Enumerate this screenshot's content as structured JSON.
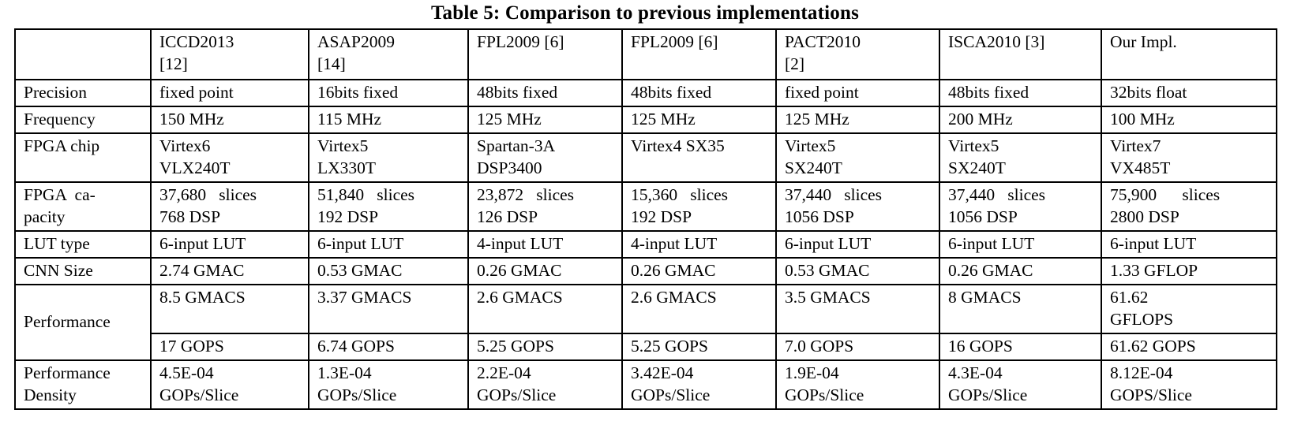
{
  "title": "Table 5: Comparison to previous implementations",
  "table": {
    "columns": [
      "",
      "ICCD2013\n[12]",
      "ASAP2009\n[14]",
      "FPL2009 [6]",
      "FPL2009 [6]",
      "PACT2010\n[2]",
      "ISCA2010 [3]",
      "Our Impl."
    ],
    "rows": [
      {
        "label": "Precision",
        "cells": [
          "fixed point",
          "16bits fixed",
          "48bits fixed",
          "48bits fixed",
          "fixed point",
          "48bits fixed",
          "32bits float"
        ]
      },
      {
        "label": "Frequency",
        "cells": [
          "150 MHz",
          "115 MHz",
          "125 MHz",
          "125 MHz",
          "125 MHz",
          "200 MHz",
          "100 MHz"
        ]
      },
      {
        "label": "FPGA chip",
        "tall": true,
        "cells": [
          "Virtex6\nVLX240T",
          "Virtex5\nLX330T",
          "Spartan-3A\nDSP3400",
          "Virtex4 SX35",
          "Virtex5\nSX240T",
          "Virtex5\nSX240T",
          "Virtex7\nVX485T"
        ]
      },
      {
        "label": "FPGA  ca-\npacity",
        "tall": true,
        "cells": [
          "37,680   slices\n768 DSP",
          "51,840   slices\n192 DSP",
          "23,872   slices\n126 DSP",
          "15,360   slices\n192 DSP",
          "37,440   slices\n1056 DSP",
          "37,440   slices\n1056 DSP",
          "75,900      slices\n2800 DSP"
        ]
      },
      {
        "label": "LUT type",
        "cells": [
          "6-input LUT",
          "6-input LUT",
          "4-input LUT",
          "4-input LUT",
          "6-input LUT",
          "6-input LUT",
          "6-input LUT"
        ]
      },
      {
        "label": "CNN Size",
        "cells": [
          "2.74 GMAC",
          "0.53 GMAC",
          "0.26 GMAC",
          "0.26 GMAC",
          "0.53 GMAC",
          "0.26 GMAC",
          "1.33 GFLOP"
        ]
      },
      {
        "label": "Performance",
        "label_rowspan": 2,
        "tall": true,
        "cells": [
          "8.5 GMACS",
          "3.37 GMACS",
          "2.6 GMACS",
          "2.6 GMACS",
          "3.5 GMACS",
          "8 GMACS",
          "61.62\nGFLOPS"
        ]
      },
      {
        "label": null,
        "cells": [
          "17 GOPS",
          "6.74 GOPS",
          "5.25 GOPS",
          "5.25 GOPS",
          "7.0 GOPS",
          "16 GOPS",
          "61.62 GOPS"
        ]
      },
      {
        "label": "Performance\nDensity",
        "tall": true,
        "cells": [
          "4.5E-04\nGOPs/Slice",
          "1.3E-04\nGOPs/Slice",
          "2.2E-04\nGOPs/Slice",
          "3.42E-04\nGOPs/Slice",
          "1.9E-04\nGOPs/Slice",
          "4.3E-04\nGOPs/Slice",
          "8.12E-04\nGOPS/Slice"
        ]
      }
    ]
  }
}
